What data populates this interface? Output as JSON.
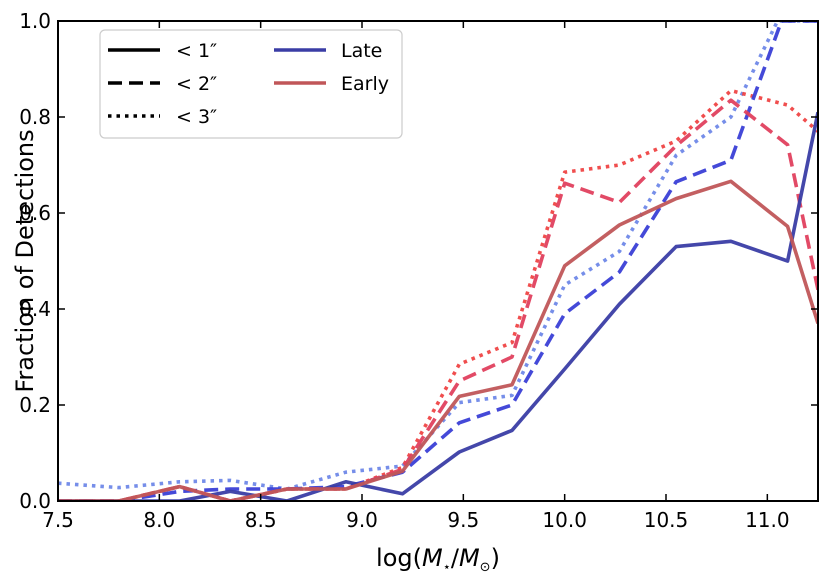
{
  "chart_data": {
    "type": "line",
    "title": "",
    "xlabel": "log(M⋆/M⊙)",
    "xlabel_parts": {
      "pre": "log(",
      "m1": "M",
      "sub1": "⋆",
      "slash": "/",
      "m2": "M",
      "sub2": "⊙",
      "post": ")"
    },
    "ylabel": "Fraction of Detections",
    "xlim": [
      7.5,
      11.25
    ],
    "ylim": [
      0.0,
      1.0
    ],
    "xticks": [
      7.5,
      8.0,
      8.5,
      9.0,
      9.5,
      10.0,
      10.5,
      11.0
    ],
    "xtick_labels": [
      "7.5",
      "8.0",
      "8.5",
      "9.0",
      "9.5",
      "10.0",
      "10.5",
      "11.0"
    ],
    "yticks": [
      0.0,
      0.2,
      0.4,
      0.6,
      0.8,
      1.0
    ],
    "ytick_labels": [
      "0.0",
      "0.2",
      "0.4",
      "0.6",
      "0.8",
      "1.0"
    ],
    "grid": false,
    "legend": {
      "placement": "top-left",
      "linestyle_entries": [
        {
          "label": "< 1″",
          "style": "solid"
        },
        {
          "label": "< 2″",
          "style": "dashed"
        },
        {
          "label": "< 3″",
          "style": "dotted"
        }
      ],
      "color_entries": [
        {
          "label": "Late",
          "color": "#3a3da5"
        },
        {
          "label": "Early",
          "color": "#c05658"
        }
      ]
    },
    "series": [
      {
        "name": "Late < 1″",
        "group": "Late",
        "style": "solid",
        "color": "#3a3da5",
        "x": [
          7.5,
          7.8,
          8.1,
          8.35,
          8.63,
          8.92,
          9.2,
          9.48,
          9.74,
          10.0,
          10.27,
          10.55,
          10.82,
          11.1,
          11.25
        ],
        "y": [
          0.0,
          0.0,
          0.0,
          0.02,
          0.0,
          0.04,
          0.015,
          0.102,
          0.147,
          0.275,
          0.41,
          0.53,
          0.541,
          0.5,
          0.81
        ]
      },
      {
        "name": "Late < 2″",
        "group": "Late",
        "style": "dashed",
        "color": "#3a3fd6",
        "x": [
          7.5,
          7.8,
          8.1,
          8.35,
          8.63,
          8.92,
          9.2,
          9.48,
          9.74,
          10.0,
          10.27,
          10.55,
          10.82,
          11.07,
          11.25
        ],
        "y": [
          0.0,
          0.0,
          0.02,
          0.025,
          0.025,
          0.03,
          0.06,
          0.163,
          0.2,
          0.39,
          0.477,
          0.665,
          0.71,
          1.0,
          1.0
        ]
      },
      {
        "name": "Late < 3″",
        "group": "Late",
        "style": "dotted",
        "color": "#6f88e8",
        "x": [
          7.5,
          7.8,
          8.1,
          8.35,
          8.63,
          8.92,
          9.2,
          9.48,
          9.74,
          10.0,
          10.27,
          10.55,
          10.82,
          11.05,
          11.25
        ],
        "y": [
          0.037,
          0.028,
          0.04,
          0.043,
          0.025,
          0.06,
          0.073,
          0.205,
          0.22,
          0.45,
          0.52,
          0.72,
          0.8,
          1.0,
          1.0
        ]
      },
      {
        "name": "Early < 1″",
        "group": "Early",
        "style": "solid",
        "color": "#c05658",
        "x": [
          7.5,
          7.8,
          8.1,
          8.35,
          8.63,
          8.92,
          9.2,
          9.48,
          9.74,
          10.0,
          10.27,
          10.55,
          10.82,
          11.1,
          11.25
        ],
        "y": [
          0.0,
          0.0,
          0.03,
          0.0,
          0.025,
          0.025,
          0.062,
          0.218,
          0.242,
          0.49,
          0.575,
          0.63,
          0.666,
          0.572,
          0.37
        ]
      },
      {
        "name": "Early < 2″",
        "group": "Early",
        "style": "dashed",
        "color": "#e0405e",
        "x": [
          7.5,
          7.8,
          8.1,
          8.35,
          8.63,
          8.92,
          9.2,
          9.48,
          9.74,
          10.0,
          10.27,
          10.55,
          10.82,
          11.1,
          11.25
        ],
        "y": [
          0.0,
          0.0,
          0.03,
          0.0,
          0.025,
          0.025,
          0.066,
          0.25,
          0.3,
          0.662,
          0.622,
          0.74,
          0.835,
          0.742,
          0.44
        ]
      },
      {
        "name": "Early < 3″",
        "group": "Early",
        "style": "dotted",
        "color": "#ef4545",
        "x": [
          7.5,
          7.8,
          8.1,
          8.35,
          8.63,
          8.92,
          9.2,
          9.48,
          9.74,
          10.0,
          10.27,
          10.55,
          10.82,
          11.1,
          11.25
        ],
        "y": [
          0.0,
          0.0,
          0.03,
          0.0,
          0.025,
          0.025,
          0.07,
          0.285,
          0.33,
          0.685,
          0.7,
          0.75,
          0.855,
          0.825,
          0.77
        ]
      }
    ]
  }
}
